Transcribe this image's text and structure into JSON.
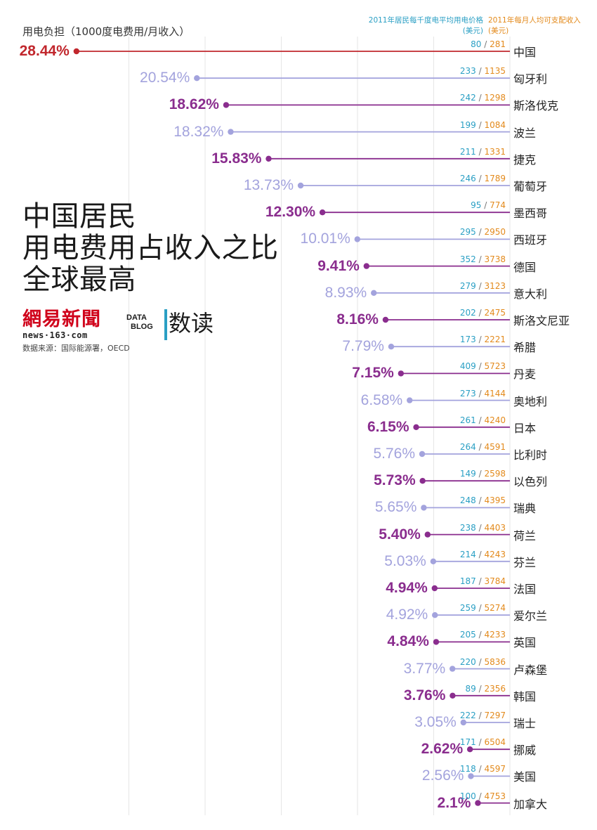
{
  "header": {
    "ylabel": "用电负担（1000度电费用/月收入）",
    "legend_price_line1": "2011年居民每千度电平均用电价格",
    "legend_price_line2": "(美元)",
    "legend_income_line1": "2011年每月人均可支配收入",
    "legend_income_line2": "(美元)"
  },
  "headline": {
    "line1": "中国居民",
    "line2": "用电费用占收入之比",
    "line3": "全球最高"
  },
  "branding": {
    "logo_main": "網易新聞",
    "logo_sub": "news·163·com",
    "datablog_line1": "DATA",
    "datablog_line2": "BLOG",
    "shudu": "数读",
    "source": "数据来源：国际能源署，OECD"
  },
  "colors": {
    "first": "#c1272d",
    "odd": "#8a2d8e",
    "even": "#a3a3dd",
    "price": "#2a9fc4",
    "income": "#e38a1c",
    "grid": "#e6e6e6"
  },
  "chart_data": {
    "type": "lollipop",
    "title": "中国居民用电费用占收入之比全球最高",
    "ylabel": "用电负担（1000度电费用/月收入）",
    "xlim": [
      0,
      30
    ],
    "categories": [
      "中国",
      "匈牙利",
      "斯洛伐克",
      "波兰",
      "捷克",
      "葡萄牙",
      "墨西哥",
      "西班牙",
      "德国",
      "意大利",
      "斯洛文尼亚",
      "希腊",
      "丹麦",
      "奥地利",
      "日本",
      "比利时",
      "以色列",
      "瑞典",
      "荷兰",
      "芬兰",
      "法国",
      "爱尔兰",
      "英国",
      "卢森堡",
      "韩国",
      "瑞士",
      "挪威",
      "美国",
      "加拿大"
    ],
    "labels": [
      "28.44%",
      "20.54%",
      "18.62%",
      "18.32%",
      "15.83%",
      "13.73%",
      "12.30%",
      "10.01%",
      "9.41%",
      "8.93%",
      "8.16%",
      "7.79%",
      "7.15%",
      "6.58%",
      "6.15%",
      "5.76%",
      "5.73%",
      "5.65%",
      "5.40%",
      "5.03%",
      "4.94%",
      "4.92%",
      "4.84%",
      "3.77%",
      "3.76%",
      "3.05%",
      "2.62%",
      "2.56%",
      "2.1%"
    ],
    "values": [
      28.44,
      20.54,
      18.62,
      18.32,
      15.83,
      13.73,
      12.3,
      10.01,
      9.41,
      8.93,
      8.16,
      7.79,
      7.15,
      6.58,
      6.15,
      5.76,
      5.73,
      5.65,
      5.4,
      5.03,
      4.94,
      4.92,
      4.84,
      3.77,
      3.76,
      3.05,
      2.62,
      2.56,
      2.1
    ],
    "price": [
      80,
      233,
      242,
      199,
      211,
      246,
      95,
      295,
      352,
      279,
      202,
      173,
      409,
      273,
      261,
      264,
      149,
      248,
      238,
      214,
      187,
      259,
      205,
      220,
      89,
      222,
      171,
      118,
      100
    ],
    "income": [
      281,
      1135,
      1298,
      1084,
      1331,
      1789,
      774,
      2950,
      3738,
      3123,
      2475,
      2221,
      5723,
      4144,
      4240,
      4591,
      2598,
      4395,
      4403,
      4243,
      3784,
      5274,
      4233,
      5836,
      2356,
      7297,
      6504,
      4597,
      4753
    ],
    "separator": "/"
  }
}
